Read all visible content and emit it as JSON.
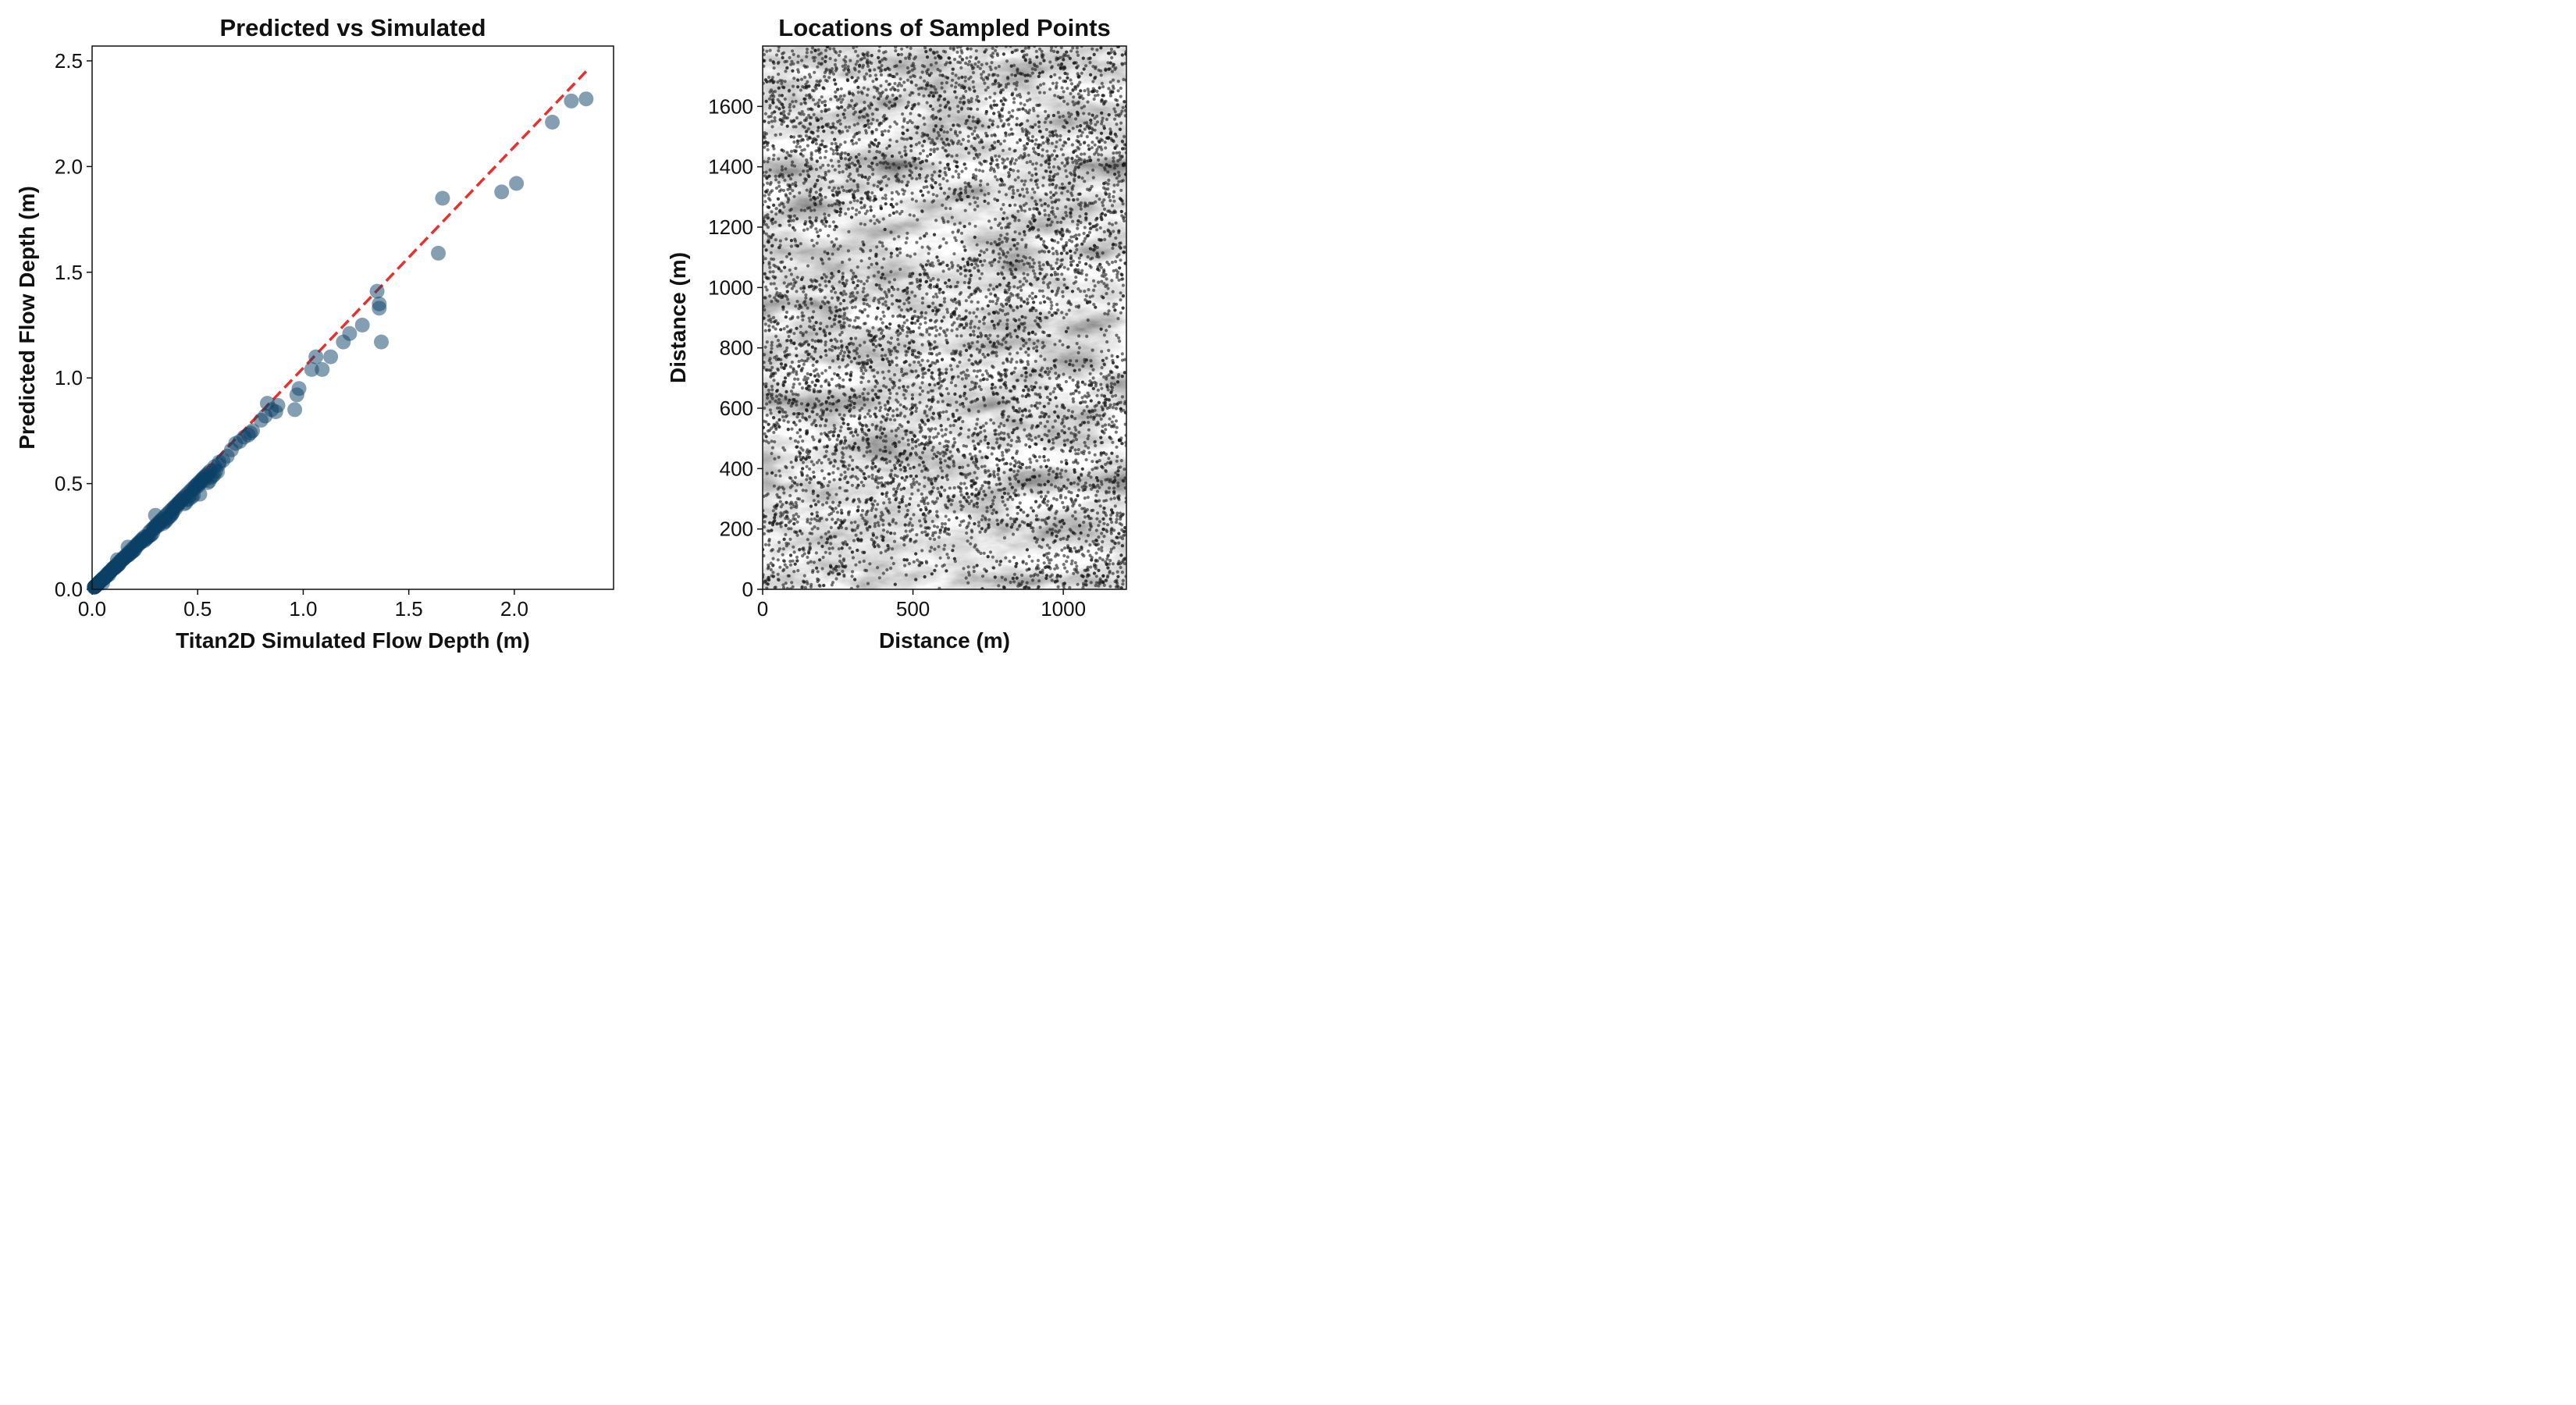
{
  "chart_data": [
    {
      "type": "scatter",
      "title": "Predicted vs Simulated",
      "xlabel": "Titan2D Simulated Flow Depth (m)",
      "ylabel": "Predicted Flow Depth (m)",
      "xlim": [
        0,
        2.47
      ],
      "ylim": [
        0,
        2.57
      ],
      "xticks": [
        "0.0",
        "0.5",
        "1.0",
        "1.5",
        "2.0"
      ],
      "yticks": [
        "0.0",
        "0.5",
        "1.0",
        "1.5",
        "2.0",
        "2.5"
      ],
      "xtick_values": [
        0,
        0.5,
        1.0,
        1.5,
        2.0
      ],
      "ytick_values": [
        0,
        0.5,
        1.0,
        1.5,
        2.0,
        2.5
      ],
      "marker_color": "#0b4066",
      "reference_line": {
        "from": [
          0,
          0
        ],
        "to": [
          2.34,
          2.45
        ],
        "color": "#e8302f",
        "style": "dashed"
      },
      "series": [
        {
          "name": "points",
          "x": [
            0.02,
            0.03,
            0.04,
            0.05,
            0.06,
            0.07,
            0.08,
            0.09,
            0.1,
            0.11,
            0.12,
            0.13,
            0.14,
            0.15,
            0.16,
            0.17,
            0.18,
            0.19,
            0.2,
            0.21,
            0.22,
            0.23,
            0.24,
            0.25,
            0.26,
            0.27,
            0.28,
            0.29,
            0.3,
            0.31,
            0.32,
            0.33,
            0.34,
            0.35,
            0.36,
            0.37,
            0.38,
            0.39,
            0.4,
            0.41,
            0.42,
            0.43,
            0.44,
            0.45,
            0.46,
            0.47,
            0.48,
            0.49,
            0.5,
            0.51,
            0.52,
            0.53,
            0.54,
            0.55,
            0.56,
            0.58,
            0.6,
            0.62,
            0.64,
            0.66,
            0.68,
            0.7,
            0.72,
            0.74,
            0.75,
            0.76,
            0.8,
            0.82,
            0.83,
            0.85,
            0.87,
            0.88,
            0.96,
            0.97,
            0.98,
            1.04,
            1.06,
            1.09,
            1.13,
            1.19,
            1.22,
            1.28,
            1.35,
            1.36,
            1.36,
            1.37,
            1.64,
            1.66,
            1.94,
            2.01,
            2.18,
            2.27,
            2.34,
            0.05,
            0.08,
            0.12,
            0.17,
            0.3,
            0.38,
            0.51
          ],
          "y": [
            0.02,
            0.03,
            0.04,
            0.05,
            0.06,
            0.07,
            0.08,
            0.09,
            0.1,
            0.11,
            0.12,
            0.13,
            0.14,
            0.15,
            0.16,
            0.17,
            0.18,
            0.19,
            0.2,
            0.21,
            0.22,
            0.23,
            0.24,
            0.25,
            0.25,
            0.27,
            0.28,
            0.29,
            0.3,
            0.31,
            0.32,
            0.33,
            0.34,
            0.35,
            0.36,
            0.37,
            0.38,
            0.39,
            0.4,
            0.41,
            0.42,
            0.43,
            0.44,
            0.45,
            0.46,
            0.47,
            0.48,
            0.49,
            0.5,
            0.51,
            0.52,
            0.53,
            0.54,
            0.55,
            0.56,
            0.58,
            0.59,
            0.61,
            0.63,
            0.66,
            0.69,
            0.7,
            0.72,
            0.73,
            0.74,
            0.75,
            0.8,
            0.82,
            0.88,
            0.85,
            0.84,
            0.87,
            0.85,
            0.92,
            0.95,
            1.04,
            1.1,
            1.04,
            1.1,
            1.17,
            1.21,
            1.25,
            1.41,
            1.33,
            1.35,
            1.17,
            1.59,
            1.85,
            1.88,
            1.92,
            2.21,
            2.31,
            2.32,
            0.03,
            0.07,
            0.14,
            0.2,
            0.35,
            0.36,
            0.45
          ]
        }
      ]
    },
    {
      "type": "scatter",
      "title": "Locations of Sampled Points",
      "xlabel": "Distance (m)",
      "ylabel": "Distance (m)",
      "xlim": [
        0,
        1210
      ],
      "ylim": [
        0,
        1800
      ],
      "xticks": [
        "0",
        "500",
        "1000"
      ],
      "yticks": [
        "0",
        "200",
        "400",
        "600",
        "800",
        "1000",
        "1200",
        "1400",
        "1600"
      ],
      "xtick_values": [
        0,
        500,
        1000
      ],
      "ytick_values": [
        0,
        200,
        400,
        600,
        800,
        1000,
        1200,
        1400,
        1600
      ],
      "background": "grayscale hillshade terrain",
      "marker_color": "#1a1a1a",
      "point_count_estimate": 9000,
      "density_note": "sample points distributed across the entire domain, lighter density in white ridge bands"
    }
  ]
}
